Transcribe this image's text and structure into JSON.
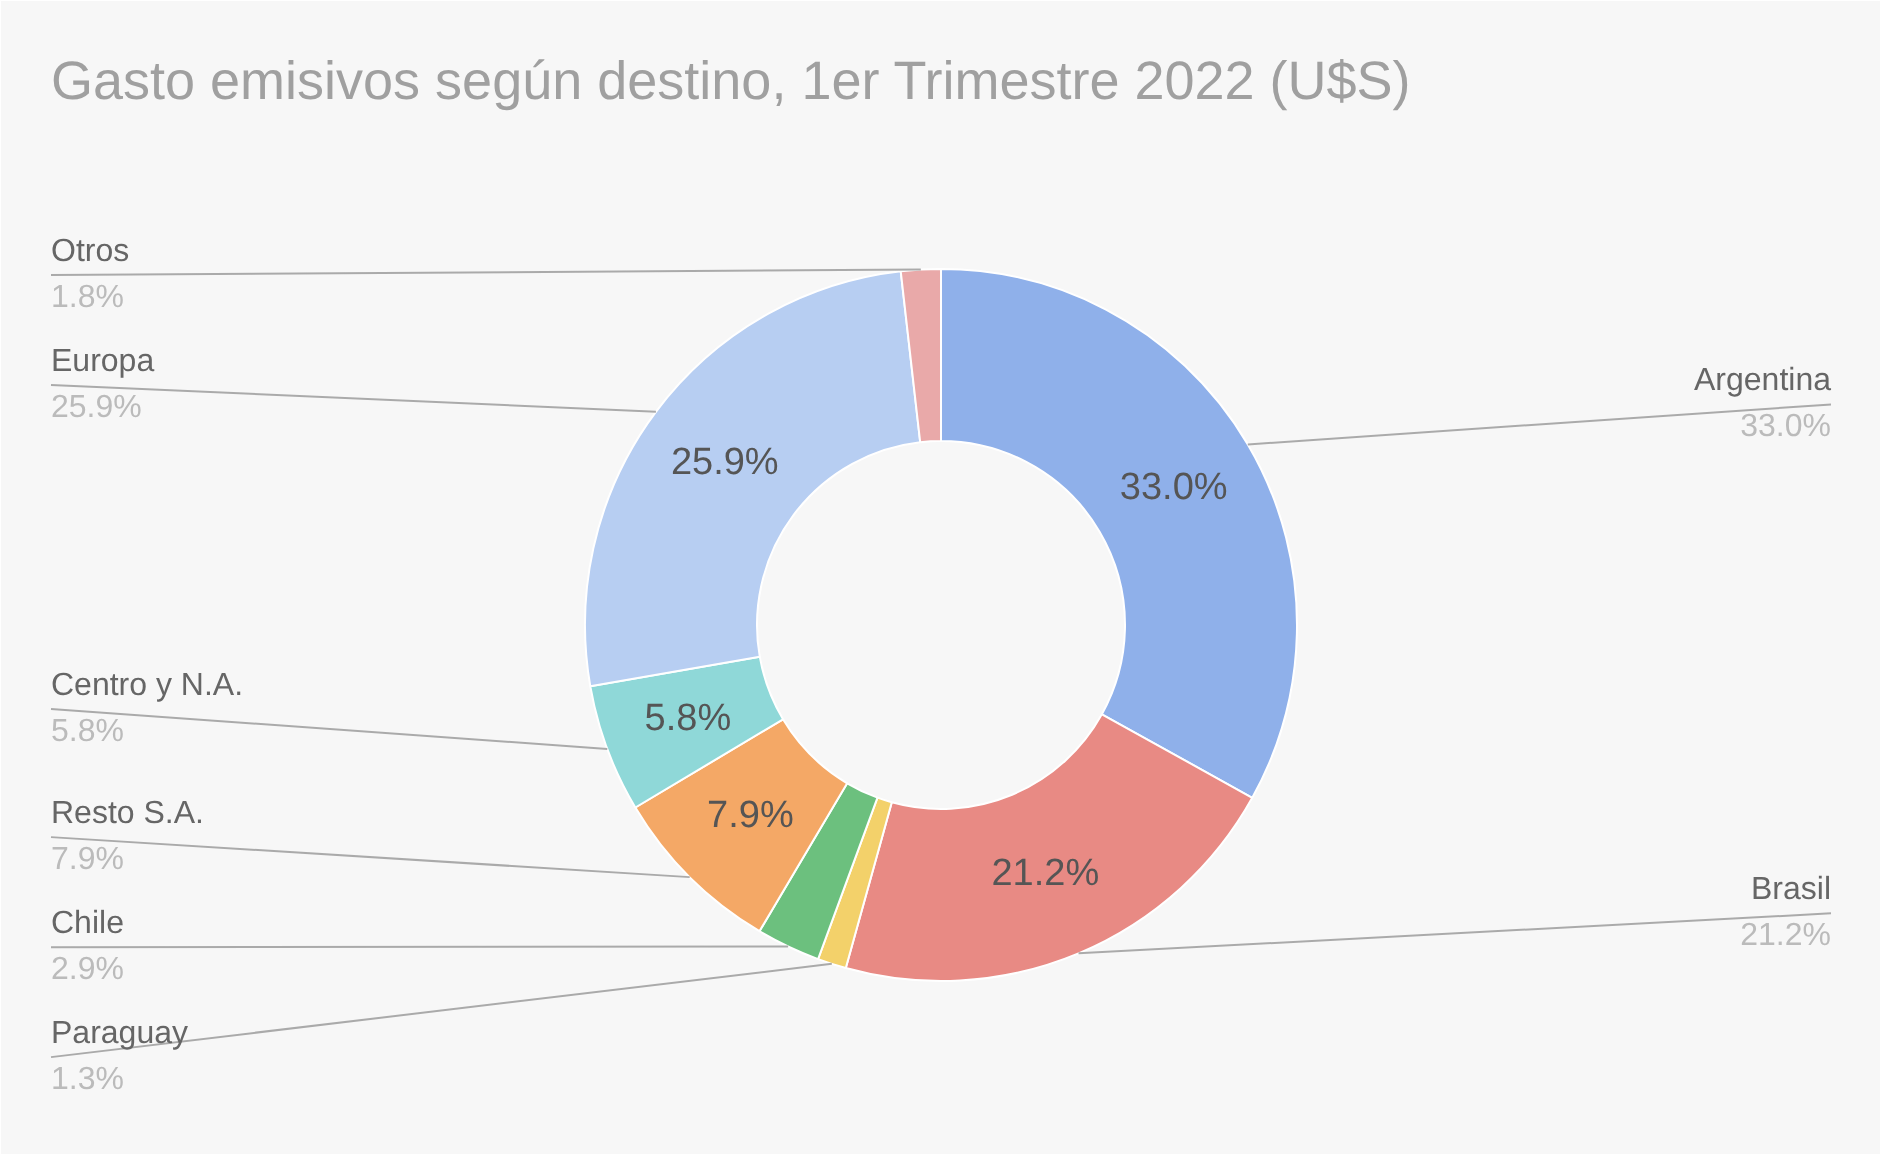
{
  "chart_data": {
    "type": "donut",
    "title": "Gasto emisivos según destino, 1er Trimestre 2022 (U$S)",
    "categories": [
      "Argentina",
      "Brasil",
      "Paraguay",
      "Chile",
      "Resto S.A.",
      "Centro y N.A.",
      "Europa",
      "Otros"
    ],
    "values": [
      33.0,
      21.2,
      1.3,
      2.9,
      7.9,
      5.8,
      25.9,
      1.8
    ],
    "colors": [
      "#8fb0ea",
      "#e88a84",
      "#f3d16a",
      "#6cc07e",
      "#f4a866",
      "#8fd8d8",
      "#b7cef2",
      "#e9a9a9"
    ],
    "value_labels": [
      "33.0%",
      "21.2%",
      "1.3%",
      "2.9%",
      "7.9%",
      "5.8%",
      "25.9%",
      "1.8%"
    ]
  }
}
